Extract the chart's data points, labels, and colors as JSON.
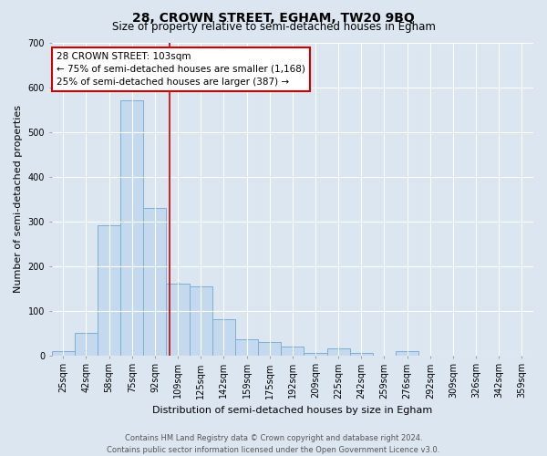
{
  "title": "28, CROWN STREET, EGHAM, TW20 9BQ",
  "subtitle": "Size of property relative to semi-detached houses in Egham",
  "xlabel": "Distribution of semi-detached houses by size in Egham",
  "ylabel": "Number of semi-detached properties",
  "footer1": "Contains HM Land Registry data © Crown copyright and database right 2024.",
  "footer2": "Contains public sector information licensed under the Open Government Licence v3.0.",
  "categories": [
    "25sqm",
    "42sqm",
    "58sqm",
    "75sqm",
    "92sqm",
    "109sqm",
    "125sqm",
    "142sqm",
    "159sqm",
    "175sqm",
    "192sqm",
    "209sqm",
    "225sqm",
    "242sqm",
    "259sqm",
    "276sqm",
    "292sqm",
    "309sqm",
    "326sqm",
    "342sqm",
    "359sqm"
  ],
  "values": [
    10,
    50,
    290,
    570,
    330,
    160,
    155,
    80,
    35,
    30,
    20,
    5,
    15,
    5,
    0,
    10,
    0,
    0,
    0,
    0,
    0
  ],
  "bar_color": "#c5d9ee",
  "bar_edgecolor": "#7bafd4",
  "vline_color": "#cc0000",
  "annotation_box_color": "#ffffff",
  "annotation_box_edgecolor": "#cc0000",
  "property_label": "28 CROWN STREET: 103sqm",
  "annotation_line1": "← 75% of semi-detached houses are smaller (1,168)",
  "annotation_line2": "25% of semi-detached houses are larger (387) →",
  "ylim": [
    0,
    700
  ],
  "yticks": [
    0,
    100,
    200,
    300,
    400,
    500,
    600,
    700
  ],
  "background_color": "#dce6f0",
  "plot_background": "#dce6f0",
  "grid_color": "#ffffff",
  "title_fontsize": 10,
  "subtitle_fontsize": 8.5,
  "axis_label_fontsize": 8,
  "tick_fontsize": 7,
  "annotation_fontsize": 7.5,
  "footer_fontsize": 6
}
